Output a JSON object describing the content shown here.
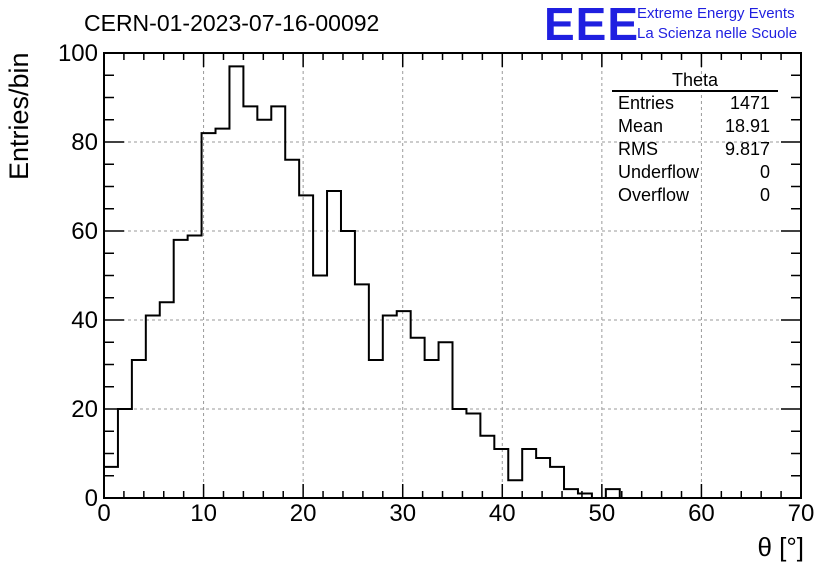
{
  "title": "CERN-01-2023-07-16-00092",
  "logo": {
    "mark": "EEE",
    "line1": "Extreme Energy Events",
    "line2": "La Scienza nelle Scuole",
    "color": "#1f1fe0"
  },
  "stats": {
    "name": "Theta",
    "rows": [
      {
        "label": "Entries",
        "value": "1471"
      },
      {
        "label": "Mean",
        "value": "18.91"
      },
      {
        "label": "RMS",
        "value": "9.817"
      },
      {
        "label": "Underflow",
        "value": "0"
      },
      {
        "label": "Overflow",
        "value": "0"
      }
    ]
  },
  "chart_data": {
    "type": "bar",
    "style": "step-histogram",
    "xlabel": "θ [°]",
    "ylabel": "Entries/bin",
    "xlim": [
      0,
      70
    ],
    "ylim": [
      0,
      100
    ],
    "xticks": [
      0,
      10,
      20,
      30,
      40,
      50,
      60,
      70
    ],
    "yticks": [
      0,
      20,
      40,
      60,
      80,
      100
    ],
    "grid": true,
    "bin_width": 1.4,
    "values": [
      7,
      20,
      31,
      41,
      44,
      58,
      59,
      82,
      83,
      97,
      88,
      85,
      88,
      76,
      68,
      50,
      69,
      60,
      48,
      31,
      41,
      42,
      36,
      31,
      35,
      20,
      19,
      14,
      11,
      4,
      11,
      9,
      7,
      2,
      1,
      0,
      2,
      0,
      0,
      0,
      0,
      0,
      0,
      0,
      0,
      0,
      0,
      0,
      0,
      0
    ]
  }
}
